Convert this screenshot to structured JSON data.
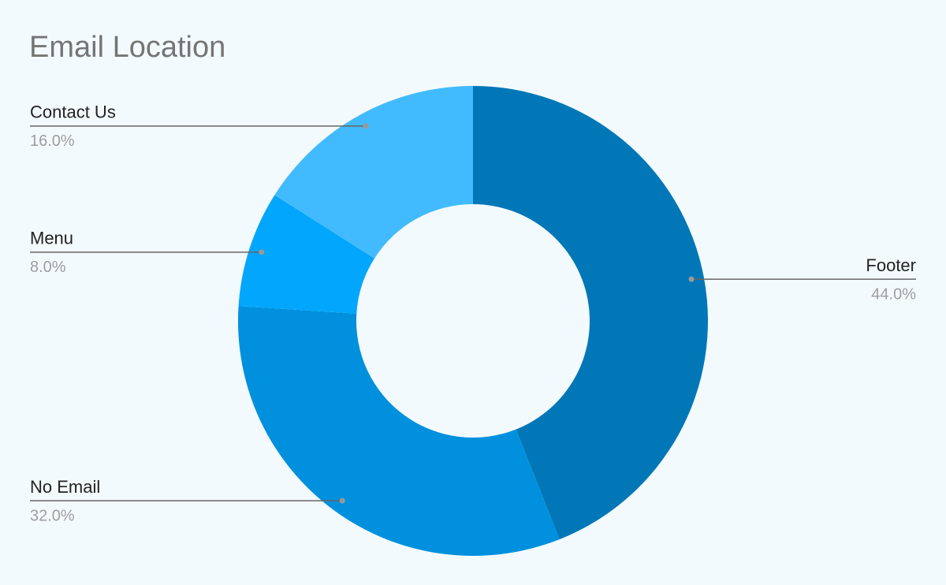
{
  "chart_data": {
    "type": "donut",
    "title": "Email Location",
    "categories": [
      "Footer",
      "No Email",
      "Menu",
      "Contact Us"
    ],
    "values": [
      44,
      32,
      8,
      16
    ],
    "value_labels": [
      "44.0%",
      "32.0%",
      "8.0%",
      "16.0%"
    ],
    "colors": [
      "#0277b8",
      "#0090dd",
      "#03a6fd",
      "#42bbfe"
    ]
  }
}
